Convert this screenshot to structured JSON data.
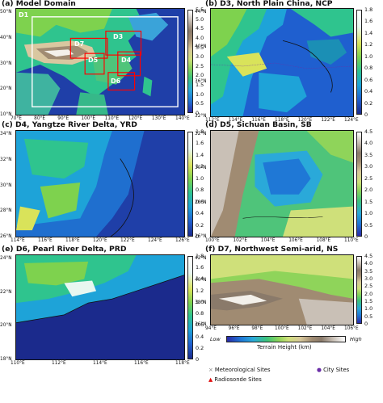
{
  "panels": {
    "a": {
      "title": "(a) Model Domain",
      "cbar": [
        "0",
        "0.5",
        "1.0",
        "1.5",
        "2.0",
        "2.5",
        "3.0",
        "3.5",
        "4.0",
        "4.5",
        "5.0",
        "5.5"
      ],
      "lats": [
        "50°N",
        "40°N",
        "30°N",
        "20°N",
        "10°N"
      ],
      "lons": [
        "70°E",
        "80°E",
        "90°E",
        "100°E",
        "110°E",
        "120°E",
        "130°E",
        "140°E"
      ],
      "domains": [
        "D1",
        "D3",
        "D7",
        "D5",
        "D4",
        "D6"
      ]
    },
    "b": {
      "title": "(b) D3, North Plain China, NCP",
      "cbar": [
        "0",
        "0.2",
        "0.4",
        "0.6",
        "0.8",
        "1.0",
        "1.2",
        "1.4",
        "1.6",
        "1.8"
      ],
      "lats": [
        "44°N",
        "40°N",
        "36°N",
        "32°N"
      ],
      "lons": [
        "112°E",
        "114°E",
        "116°E",
        "118°E",
        "120°E",
        "122°E",
        "124°E"
      ]
    },
    "c": {
      "title": "(c) D4, Yangtze River Delta, YRD",
      "cbar": [
        "0",
        "0.2",
        "0.4",
        "0.6",
        "0.8",
        "1.0",
        "1.2",
        "1.4",
        "1.6",
        "1.8"
      ],
      "lats": [
        "34°N",
        "32°N",
        "30°N",
        "28°N",
        "26°N"
      ],
      "lons": [
        "114°E",
        "116°E",
        "118°E",
        "120°E",
        "122°E",
        "124°E",
        "126°E"
      ]
    },
    "d": {
      "title": "(d) D5, Sichuan Basin, SB",
      "cbar": [
        "0",
        "0.5",
        "1.0",
        "1.5",
        "2.0",
        "2.5",
        "3.0",
        "3.5",
        "4.0",
        "4.5"
      ],
      "lats": [
        "32°N",
        "30°N",
        "28°N",
        "26°N"
      ],
      "lons": [
        "100°E",
        "102°E",
        "104°E",
        "106°E",
        "108°E",
        "110°E"
      ]
    },
    "e": {
      "title": "(e) D6, Pearl River Delta, PRD",
      "cbar": [
        "0",
        "0.2",
        "0.4",
        "0.6",
        "0.8",
        "1.0",
        "1.2",
        "1.4",
        "1.6",
        "1.8"
      ],
      "lats": [
        "24°N",
        "22°N",
        "20°N",
        "18°N"
      ],
      "lons": [
        "110°E",
        "112°E",
        "114°E",
        "116°E",
        "118°E"
      ]
    },
    "f": {
      "title": "(f) D7, Northwest Semi-arid, NS",
      "cbar": [
        "0",
        "0.5",
        "1.0",
        "1.5",
        "2.0",
        "2.5",
        "3.0",
        "3.5",
        "4.0",
        "4.5"
      ],
      "lats": [
        "42°N",
        "40°N",
        "38°N",
        "36°N"
      ],
      "lons": [
        "94°E",
        "96°E",
        "98°E",
        "100°E",
        "102°E",
        "104°E",
        "106°E"
      ]
    }
  },
  "terrain_bar": {
    "low": "Low",
    "title": "Terrain Height (km)",
    "high": "High"
  },
  "legend": {
    "met": "Meteorological Sites",
    "city": "City Sites",
    "radio": "Radiosonde Sites"
  },
  "colors": {
    "met_marker": "#808080",
    "city_marker": "#6b2fa8",
    "radio_marker": "#e01010",
    "domain_box": "#ff0000",
    "outer_box": "#ffffff"
  }
}
